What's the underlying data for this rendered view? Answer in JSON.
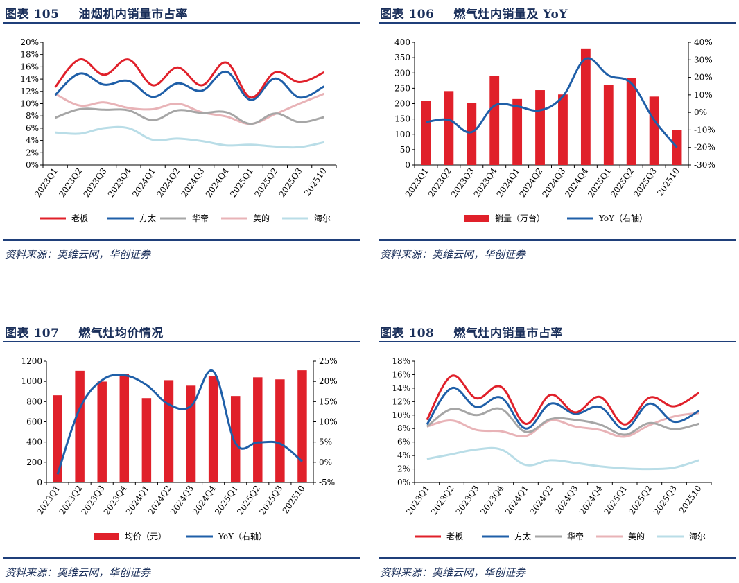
{
  "charts": [
    {
      "number": "图表 105",
      "title": "油烟机内销量市占率",
      "source": "资料来源：奥维云网，华创证券",
      "chart_data": {
        "type": "line",
        "categories": [
          "2023Q1",
          "2023Q2",
          "2023Q3",
          "2023Q4",
          "2024Q1",
          "2024Q2",
          "2024Q3",
          "2024Q4",
          "2025Q1",
          "2025Q2",
          "2025Q3",
          "202510"
        ],
        "ylim": [
          0,
          20
        ],
        "yticks": [
          "0%",
          "2%",
          "4%",
          "6%",
          "8%",
          "10%",
          "12%",
          "14%",
          "16%",
          "18%",
          "20%"
        ],
        "series": [
          {
            "name": "老板",
            "color": "#e0202a",
            "values": [
              12.7,
              17.2,
              14.7,
              17.2,
              13.0,
              15.9,
              13.0,
              16.7,
              11.0,
              15.1,
              13.5,
              15.1
            ]
          },
          {
            "name": "方太",
            "color": "#1f5fa8",
            "values": [
              11.4,
              14.9,
              13.1,
              13.7,
              11.1,
              13.3,
              12.1,
              15.2,
              10.6,
              14.1,
              11.0,
              12.8
            ]
          },
          {
            "name": "华帝",
            "color": "#a6a6a6",
            "values": [
              7.7,
              9.1,
              9.0,
              8.9,
              7.3,
              8.9,
              8.5,
              8.6,
              6.7,
              8.4,
              7.0,
              7.8
            ]
          },
          {
            "name": "美的",
            "color": "#e8b3b7",
            "values": [
              11.6,
              9.7,
              10.2,
              9.3,
              9.1,
              10.0,
              8.6,
              7.9,
              6.7,
              8.3,
              10.0,
              11.6
            ]
          },
          {
            "name": "海尔",
            "color": "#b9dde7",
            "values": [
              5.3,
              5.1,
              6.0,
              6.0,
              4.1,
              4.3,
              3.9,
              3.2,
              3.3,
              3.0,
              2.9,
              3.7
            ]
          }
        ]
      }
    },
    {
      "number": "图表 106",
      "title": "燃气灶内销量及 YoY",
      "source": "资料来源：奥维云网，华创证券",
      "chart_data": {
        "type": "bar",
        "categories": [
          "2023Q1",
          "2023Q2",
          "2023Q3",
          "2023Q4",
          "2024Q1",
          "2024Q2",
          "2024Q3",
          "2024Q4",
          "2025Q1",
          "2025Q2",
          "2025Q3",
          "202510"
        ],
        "ylim": [
          0,
          400
        ],
        "yticks": [
          "0",
          "50",
          "100",
          "150",
          "200",
          "250",
          "300",
          "350",
          "400"
        ],
        "y2lim": [
          -30,
          40
        ],
        "y2ticks": [
          "-30%",
          "-20%",
          "-10%",
          "0%",
          "10%",
          "20%",
          "30%",
          "40%"
        ],
        "series": [
          {
            "name": "销量（万台）",
            "kind": "bar",
            "axis": "left",
            "color": "#e0202a",
            "values": [
              208,
              241,
              203,
              291,
              215,
              244,
              230,
              380,
              261,
              284,
              223,
              114
            ]
          },
          {
            "name": "YoY（右轴）",
            "kind": "line",
            "axis": "right",
            "color": "#1f5fa8",
            "values": [
              -5.5,
              -4.3,
              -11.3,
              3.8,
              3.4,
              1.2,
              9.2,
              30.6,
              21.1,
              16.6,
              -4.4,
              -20.0
            ]
          }
        ]
      }
    },
    {
      "number": "图表 107",
      "title": "燃气灶均价情况",
      "source": "资料来源：奥维云网，华创证券",
      "chart_data": {
        "type": "bar",
        "categories": [
          "2023Q1",
          "2023Q2",
          "2023Q3",
          "2023Q4",
          "2024Q1",
          "2024Q2",
          "2024Q3",
          "2024Q4",
          "2025Q1",
          "2025Q2",
          "2025Q3",
          "202510"
        ],
        "ylim": [
          0,
          1200
        ],
        "yticks": [
          "0",
          "200",
          "400",
          "600",
          "800",
          "1000",
          "1200"
        ],
        "y2lim": [
          -5,
          25
        ],
        "y2ticks": [
          "-5%",
          "0%",
          "5%",
          "10%",
          "15%",
          "20%",
          "25%"
        ],
        "series": [
          {
            "name": "均价（元）",
            "kind": "bar",
            "axis": "left",
            "color": "#e0202a",
            "values": [
              863,
              1105,
              998,
              1070,
              835,
              1012,
              958,
              1049,
              856,
              1040,
              1020,
              1110
            ]
          },
          {
            "name": "YoY（右轴）",
            "kind": "line",
            "axis": "right",
            "color": "#1f5fa8",
            "values": [
              -3.0,
              13.3,
              20.3,
              21.5,
              19.1,
              14.3,
              13.9,
              22.5,
              4.7,
              4.9,
              4.6,
              0.2
            ]
          }
        ]
      }
    },
    {
      "number": "图表 108",
      "title": "燃气灶内销量市占率",
      "source": "资料来源：奥维云网，华创证券",
      "chart_data": {
        "type": "line",
        "categories": [
          "2023Q1",
          "2023Q2",
          "2023Q3",
          "2023Q4",
          "2024Q1",
          "2024Q2",
          "2024Q3",
          "2024Q4",
          "2025Q1",
          "2025Q2",
          "2025Q3",
          "202510"
        ],
        "ylim": [
          0,
          18
        ],
        "yticks": [
          "0%",
          "2%",
          "4%",
          "6%",
          "8%",
          "10%",
          "12%",
          "14%",
          "16%",
          "18%"
        ],
        "series": [
          {
            "name": "老板",
            "color": "#e0202a",
            "values": [
              9.3,
              15.8,
              12.5,
              14.2,
              8.7,
              13.0,
              10.4,
              12.7,
              8.6,
              12.6,
              11.3,
              13.3
            ]
          },
          {
            "name": "方太",
            "color": "#1f5fa8",
            "values": [
              8.6,
              14.0,
              11.2,
              12.6,
              8.0,
              11.7,
              10.2,
              11.2,
              7.9,
              11.7,
              9.0,
              10.6
            ]
          },
          {
            "name": "华帝",
            "color": "#a6a6a6",
            "values": [
              8.3,
              10.9,
              10.0,
              10.9,
              7.5,
              9.4,
              9.3,
              8.6,
              7.1,
              8.8,
              7.9,
              8.7
            ]
          },
          {
            "name": "美的",
            "color": "#e8b3b7",
            "values": [
              8.3,
              9.2,
              7.8,
              7.6,
              6.9,
              9.2,
              8.3,
              7.8,
              6.8,
              8.5,
              9.8,
              10.3
            ]
          },
          {
            "name": "海尔",
            "color": "#b9dde7",
            "values": [
              3.5,
              4.2,
              4.9,
              4.9,
              2.6,
              3.3,
              2.9,
              2.4,
              2.1,
              2.0,
              2.2,
              3.3
            ]
          }
        ]
      }
    }
  ]
}
